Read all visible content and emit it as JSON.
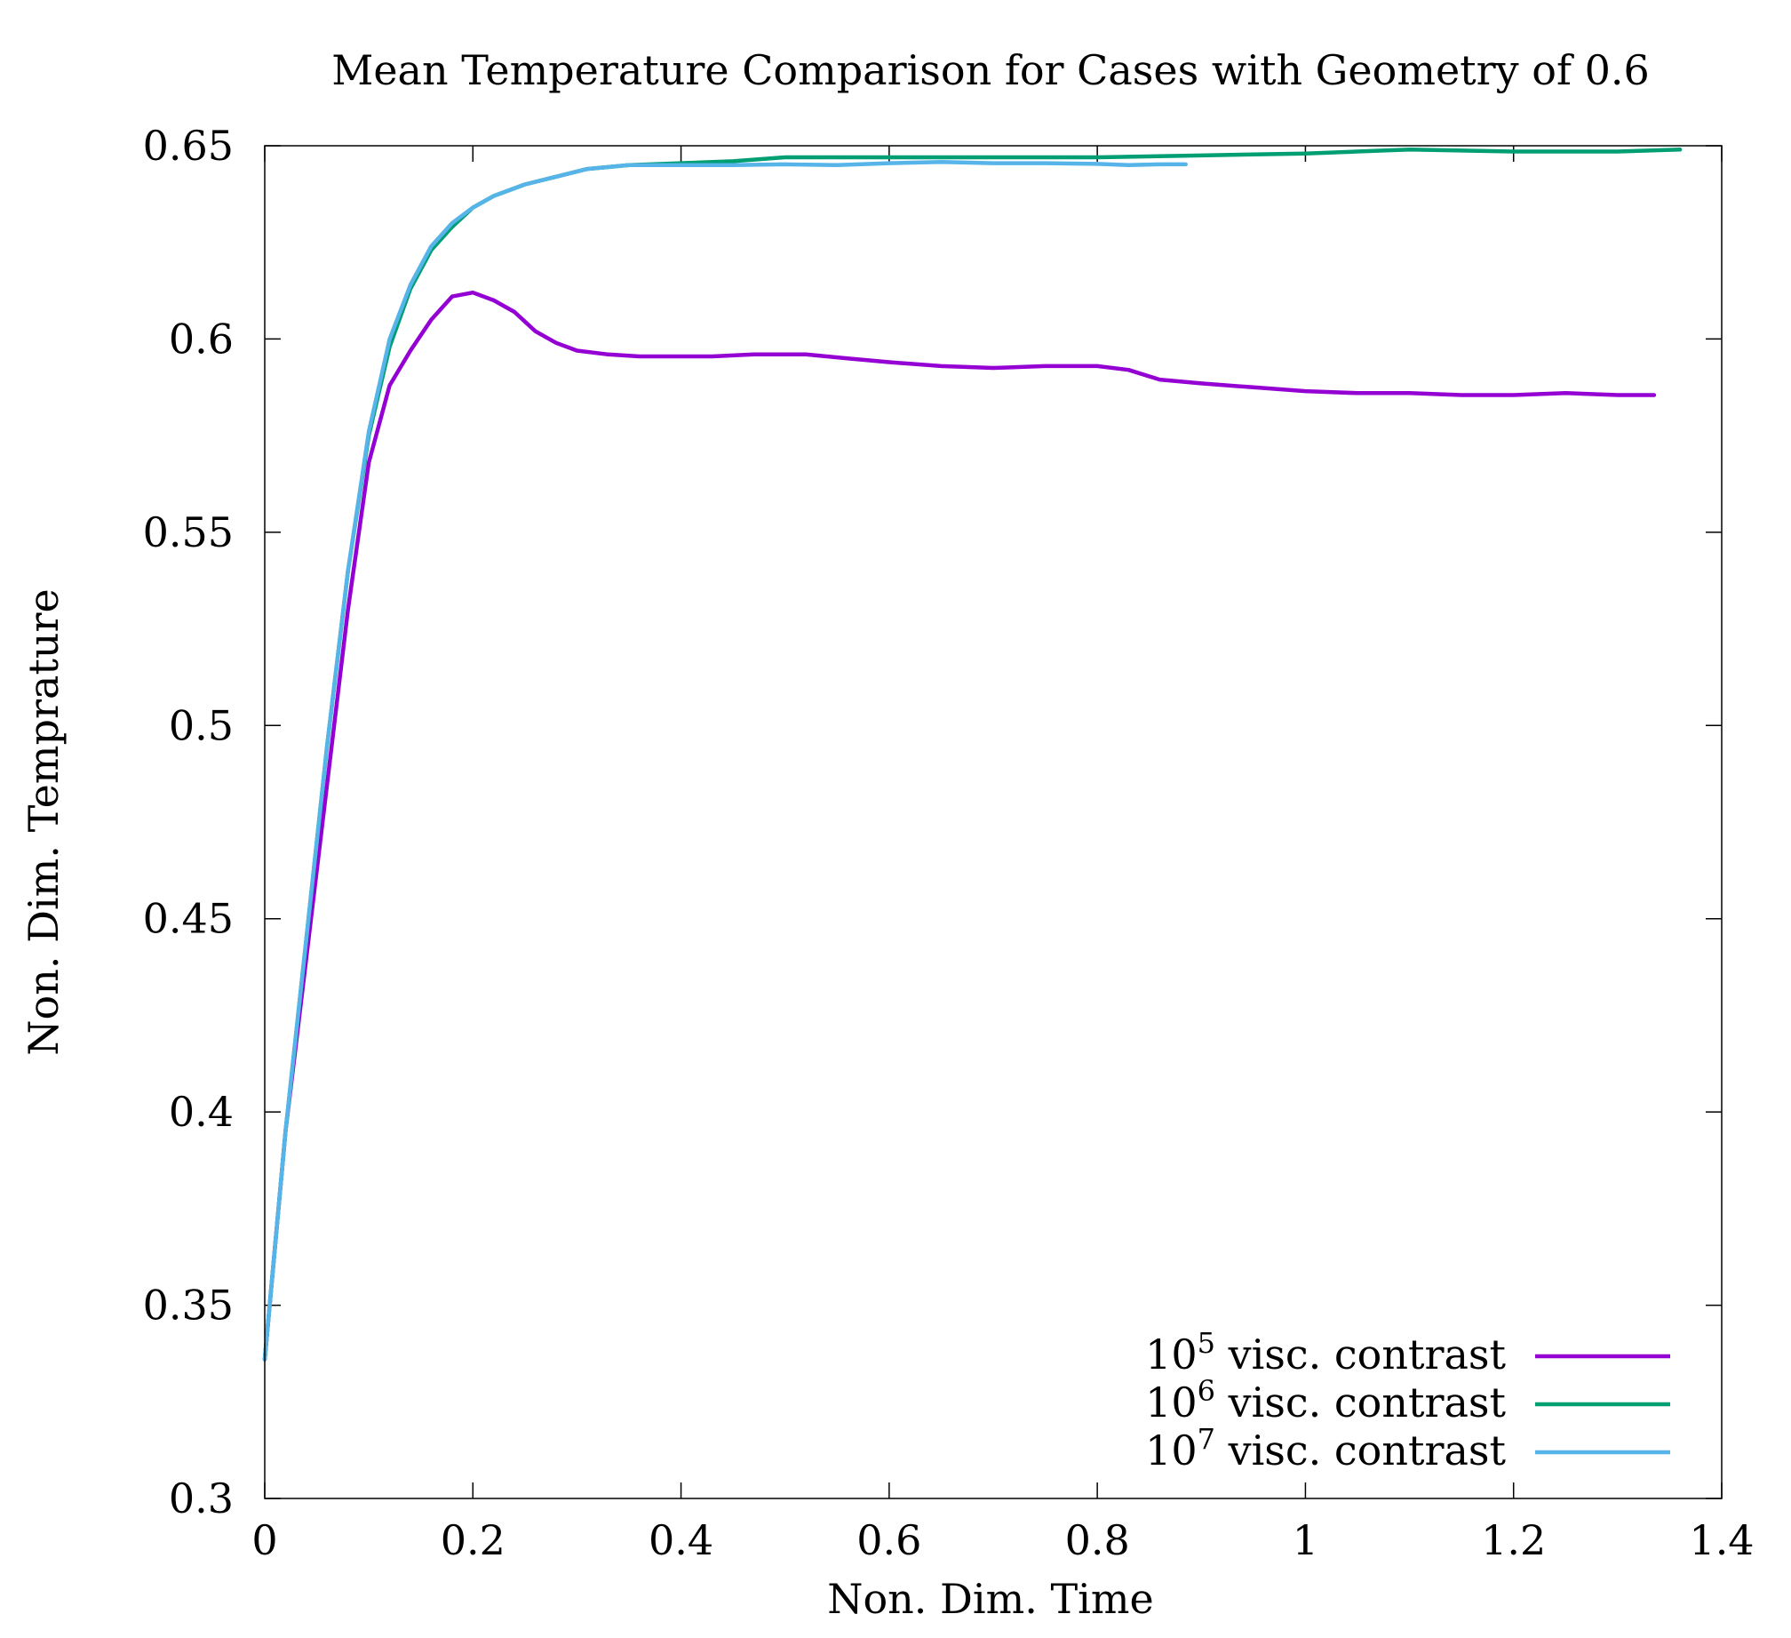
{
  "chart_data": {
    "type": "line",
    "title": "Mean Temperature Comparison for Cases with Geometry of 0.6",
    "xlabel": "Non. Dim. Time",
    "ylabel": "Non. Dim. Temprature",
    "xlim": [
      0,
      1.4
    ],
    "ylim": [
      0.3,
      0.65
    ],
    "x_ticks": [
      0,
      0.2,
      0.4,
      0.6,
      0.8,
      1,
      1.2,
      1.4
    ],
    "x_tick_labels": [
      "0",
      "0.2",
      "0.4",
      "0.6",
      "0.8",
      "1",
      "1.2",
      "1.4"
    ],
    "y_ticks": [
      0.3,
      0.35,
      0.4,
      0.45,
      0.5,
      0.55,
      0.6,
      0.65
    ],
    "y_tick_labels": [
      "0.3",
      "0.35",
      "0.4",
      "0.45",
      "0.5",
      "0.55",
      "0.6",
      "0.65"
    ],
    "grid": false,
    "legend_position": "bottom-right",
    "series": [
      {
        "legend_base": "10",
        "legend_exp": "5",
        "legend_rest": " visc. contrast",
        "color": "#9400d3",
        "points": [
          [
            0,
            0.336
          ],
          [
            0.02,
            0.395
          ],
          [
            0.04,
            0.44
          ],
          [
            0.06,
            0.485
          ],
          [
            0.08,
            0.53
          ],
          [
            0.1,
            0.568
          ],
          [
            0.12,
            0.588
          ],
          [
            0.14,
            0.597
          ],
          [
            0.16,
            0.605
          ],
          [
            0.18,
            0.611
          ],
          [
            0.2,
            0.612
          ],
          [
            0.22,
            0.61
          ],
          [
            0.24,
            0.607
          ],
          [
            0.26,
            0.602
          ],
          [
            0.28,
            0.599
          ],
          [
            0.3,
            0.597
          ],
          [
            0.33,
            0.596
          ],
          [
            0.36,
            0.5955
          ],
          [
            0.4,
            0.5955
          ],
          [
            0.43,
            0.5955
          ],
          [
            0.47,
            0.596
          ],
          [
            0.52,
            0.596
          ],
          [
            0.56,
            0.595
          ],
          [
            0.6,
            0.594
          ],
          [
            0.65,
            0.593
          ],
          [
            0.7,
            0.5925
          ],
          [
            0.75,
            0.593
          ],
          [
            0.8,
            0.593
          ],
          [
            0.83,
            0.592
          ],
          [
            0.86,
            0.5895
          ],
          [
            0.9,
            0.5885
          ],
          [
            0.95,
            0.5875
          ],
          [
            1.0,
            0.5865
          ],
          [
            1.05,
            0.586
          ],
          [
            1.1,
            0.586
          ],
          [
            1.15,
            0.5855
          ],
          [
            1.2,
            0.5855
          ],
          [
            1.25,
            0.586
          ],
          [
            1.3,
            0.5855
          ],
          [
            1.335,
            0.5855
          ]
        ]
      },
      {
        "legend_base": "10",
        "legend_exp": "6",
        "legend_rest": " visc. contrast",
        "color": "#009e73",
        "points": [
          [
            0,
            0.336
          ],
          [
            0.02,
            0.395
          ],
          [
            0.04,
            0.445
          ],
          [
            0.06,
            0.495
          ],
          [
            0.08,
            0.54
          ],
          [
            0.1,
            0.575
          ],
          [
            0.12,
            0.598
          ],
          [
            0.14,
            0.613
          ],
          [
            0.16,
            0.623
          ],
          [
            0.18,
            0.629
          ],
          [
            0.2,
            0.634
          ],
          [
            0.22,
            0.637
          ],
          [
            0.25,
            0.64
          ],
          [
            0.28,
            0.642
          ],
          [
            0.31,
            0.644
          ],
          [
            0.35,
            0.645
          ],
          [
            0.4,
            0.6455
          ],
          [
            0.45,
            0.646
          ],
          [
            0.5,
            0.647
          ],
          [
            0.55,
            0.647
          ],
          [
            0.6,
            0.647
          ],
          [
            0.7,
            0.647
          ],
          [
            0.8,
            0.647
          ],
          [
            0.9,
            0.6475
          ],
          [
            1.0,
            0.648
          ],
          [
            1.1,
            0.649
          ],
          [
            1.2,
            0.6485
          ],
          [
            1.3,
            0.6485
          ],
          [
            1.36,
            0.649
          ]
        ]
      },
      {
        "legend_base": "10",
        "legend_exp": "7",
        "legend_rest": " visc. contrast",
        "color": "#56b4e9",
        "points": [
          [
            0,
            0.336
          ],
          [
            0.02,
            0.395
          ],
          [
            0.04,
            0.445
          ],
          [
            0.06,
            0.495
          ],
          [
            0.08,
            0.54
          ],
          [
            0.1,
            0.576
          ],
          [
            0.12,
            0.6
          ],
          [
            0.14,
            0.614
          ],
          [
            0.16,
            0.624
          ],
          [
            0.18,
            0.63
          ],
          [
            0.2,
            0.634
          ],
          [
            0.22,
            0.637
          ],
          [
            0.25,
            0.64
          ],
          [
            0.28,
            0.642
          ],
          [
            0.31,
            0.644
          ],
          [
            0.35,
            0.645
          ],
          [
            0.4,
            0.645
          ],
          [
            0.45,
            0.645
          ],
          [
            0.5,
            0.6452
          ],
          [
            0.55,
            0.645
          ],
          [
            0.6,
            0.6455
          ],
          [
            0.65,
            0.6458
          ],
          [
            0.7,
            0.6455
          ],
          [
            0.75,
            0.6455
          ],
          [
            0.8,
            0.6453
          ],
          [
            0.83,
            0.645
          ],
          [
            0.86,
            0.6452
          ],
          [
            0.885,
            0.6452
          ]
        ]
      }
    ]
  }
}
